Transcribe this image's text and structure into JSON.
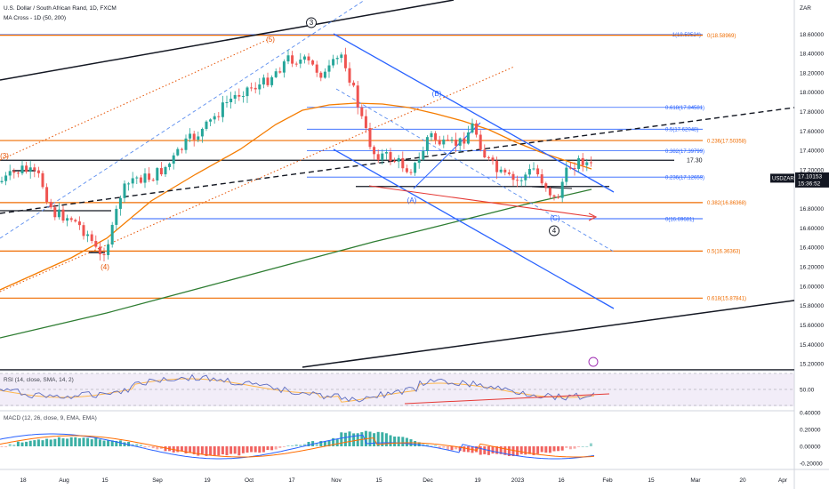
{
  "header": {
    "symbol_line": "U.S. Dollar / South African Rand, 1D, FXCM",
    "ma_line": "MA Cross - 1D (50, 200)",
    "rsi_line": "RSI (14, close, SMA, 14, 2)",
    "macd_line": "MACD (12, 26, close, 9, EMA, EMA)"
  },
  "price_axis": {
    "currency": "ZAR",
    "ticks": [
      "18.60000",
      "18.40000",
      "18.20000",
      "18.00000",
      "17.80000",
      "17.60000",
      "17.40000",
      "17.20000",
      "16.80000",
      "16.60000",
      "16.40000",
      "16.20000",
      "16.00000",
      "15.80000",
      "15.60000",
      "15.40000",
      "15.20000"
    ],
    "symbol_badge": "USDZAR",
    "price_badge": "17.10153",
    "time_badge": "15:36:52"
  },
  "rsi_axis": {
    "ticks": [
      "50.00"
    ]
  },
  "macd_axis": {
    "ticks": [
      "0.40000",
      "0.20000",
      "0.00000",
      "-0.20000"
    ]
  },
  "time_axis": {
    "labels": [
      "18",
      "Aug",
      "15",
      "Sep",
      "19",
      "Oct",
      "17",
      "Nov",
      "15",
      "Dec",
      "19",
      "2023",
      "16",
      "Feb",
      "15",
      "Mar",
      "20",
      "Apr"
    ]
  },
  "chart_data": {
    "type": "candlestick",
    "symbol": "USDZAR",
    "timeframe": "1D",
    "y_range": [
      15.2,
      18.7
    ],
    "last_price": 17.10153,
    "horizontal_levels": [
      {
        "label": "17.30",
        "value": 17.3
      },
      {
        "label": "1(18.59524)",
        "value": 18.59524
      },
      {
        "label": "0(18.58969)",
        "value": 18.58969
      },
      {
        "label": "0.618(17.84581)",
        "value": 17.84581
      },
      {
        "label": "0.5(17.62048)",
        "value": 17.62048
      },
      {
        "label": "0.236(17.50358)",
        "value": 17.50358
      },
      {
        "label": "0.382(17.39799)",
        "value": 17.39799
      },
      {
        "label": "0.236(17.12659)",
        "value": 17.12659
      },
      {
        "label": "0.382(16.86368)",
        "value": 16.86368
      },
      {
        "label": "0(16.69681)",
        "value": 16.69681
      },
      {
        "label": "0.5(16.36363)",
        "value": 16.36363
      },
      {
        "label": "0.618(15.87841)",
        "value": 15.87841
      }
    ],
    "wave_labels": [
      "3",
      "(5)",
      "(B)",
      "(A)",
      "(C)",
      "4",
      "(3)",
      "(4)"
    ],
    "indicators": [
      "MA 50",
      "MA 200",
      "RSI 14",
      "MACD 12 26 9"
    ]
  }
}
